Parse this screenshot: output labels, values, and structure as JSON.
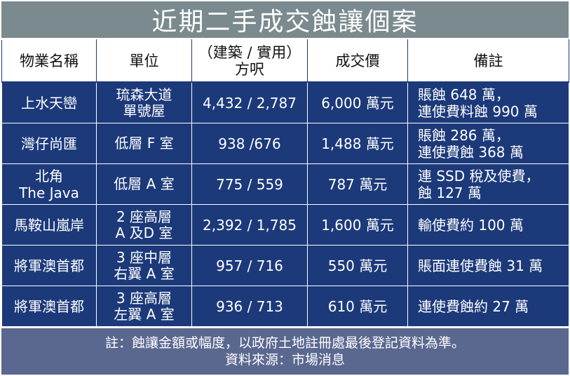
{
  "title": "近期二手成交蝕讓個案",
  "headers": {
    "property": "物業名稱",
    "unit": "單位",
    "area_line1": "（建築 / 實用）",
    "area_line2": "方呎",
    "price": "成交價",
    "remarks": "備註"
  },
  "rows": [
    {
      "property": [
        "上水天巒"
      ],
      "unit": [
        "琉森大道",
        "單號屋"
      ],
      "area": "4,432 / 2,787",
      "price": "6,000 萬元",
      "remarks": [
        "賬蝕 648 萬，",
        "連使費料蝕 990 萬"
      ]
    },
    {
      "property": [
        "灣仔尚匯"
      ],
      "unit": [
        "低層 F 室"
      ],
      "area": "938 /676",
      "price": "1,488 萬元",
      "remarks": [
        "賬蝕 286 萬，",
        "連使費蝕 368 萬"
      ]
    },
    {
      "property": [
        "北角",
        "The Java"
      ],
      "unit": [
        "低層 A 室"
      ],
      "area": "775 / 559",
      "price": "787 萬元",
      "remarks": [
        "連 SSD 稅及使費，",
        "蝕 127 萬"
      ]
    },
    {
      "property": [
        "馬鞍山嵐岸"
      ],
      "unit": [
        "2 座高層",
        "A 及D 室"
      ],
      "area": "2,392 / 1,785",
      "price": "1,600 萬元",
      "remarks": [
        "輸使費約 100 萬"
      ]
    },
    {
      "property": [
        "將軍澳首都"
      ],
      "unit": [
        "3 座中層",
        "右翼 A 室"
      ],
      "area": "957 / 716",
      "price": "550 萬元",
      "remarks": [
        "賬面連使費蝕 31 萬"
      ]
    },
    {
      "property": [
        "將軍澳首都"
      ],
      "unit": [
        "3 座高層",
        "左翼 A 室"
      ],
      "area": "936 / 713",
      "price": "610 萬元",
      "remarks": [
        "連使費蝕約 27 萬"
      ]
    }
  ],
  "footer": {
    "note": "註：蝕讓金額或幅度，以政府土地註冊處最後登記資料為準。",
    "source": "資料來源：市場消息"
  },
  "colors": {
    "title_bg": "#7a8a8e",
    "row_bg": "#1c3a7a",
    "footer_bg": "#5a6890"
  }
}
